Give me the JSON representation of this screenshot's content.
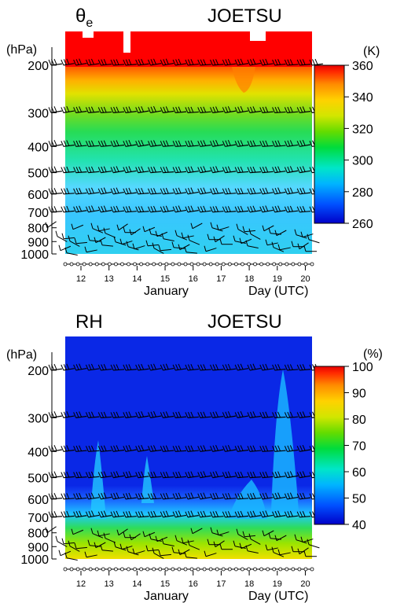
{
  "chart_data": [
    {
      "type": "heatmap",
      "variable_symbol": "θ",
      "variable_subscript": "e",
      "station": "JOETSU",
      "y_unit": "(hPa)",
      "y_ticks": [
        200,
        300,
        400,
        500,
        600,
        700,
        800,
        900,
        1000
      ],
      "y_scale": "log",
      "ylim": [
        1000,
        150
      ],
      "x_ticks": [
        "12",
        "13",
        "14",
        "15",
        "16",
        "17",
        "18",
        "19",
        "20"
      ],
      "xlabel_left": "January",
      "xlabel_right": "Day (UTC)",
      "colorbar": {
        "unit": "(K)",
        "ticks": [
          260,
          280,
          300,
          320,
          340,
          360
        ],
        "range": [
          260,
          360
        ]
      },
      "wind_barb_levels": [
        200,
        300,
        400,
        500,
        600,
        700
      ],
      "profile_low_levels": [
        {
          "p": 1000,
          "value": 275
        },
        {
          "p": 900,
          "value": 278
        },
        {
          "p": 700,
          "value": 283
        },
        {
          "p": 600,
          "value": 288
        },
        {
          "p": 500,
          "value": 296
        },
        {
          "p": 400,
          "value": 308
        },
        {
          "p": 300,
          "value": 322
        },
        {
          "p": 250,
          "value": 335
        },
        {
          "p": 200,
          "value": 355
        }
      ]
    },
    {
      "type": "heatmap",
      "variable_symbol": "RH",
      "station": "JOETSU",
      "y_unit": "(hPa)",
      "y_ticks": [
        200,
        300,
        400,
        500,
        600,
        700,
        800,
        900,
        1000
      ],
      "y_scale": "log",
      "ylim": [
        1000,
        150
      ],
      "x_ticks": [
        "12",
        "13",
        "14",
        "15",
        "16",
        "17",
        "18",
        "19",
        "20"
      ],
      "xlabel_left": "January",
      "xlabel_right": "Day (UTC)",
      "colorbar": {
        "unit": "(%)",
        "ticks": [
          40,
          50,
          60,
          70,
          80,
          90,
          100
        ],
        "range": [
          40,
          100
        ]
      },
      "wind_barb_levels": [
        200,
        300,
        400,
        500,
        600,
        700
      ]
    }
  ],
  "colors": {
    "colormap": [
      "#0000c8",
      "#0050ff",
      "#00b4ff",
      "#00e6c8",
      "#00dc3c",
      "#64dc00",
      "#d2e600",
      "#ffd200",
      "#ff8c00",
      "#ff2800",
      "#e60000"
    ]
  }
}
